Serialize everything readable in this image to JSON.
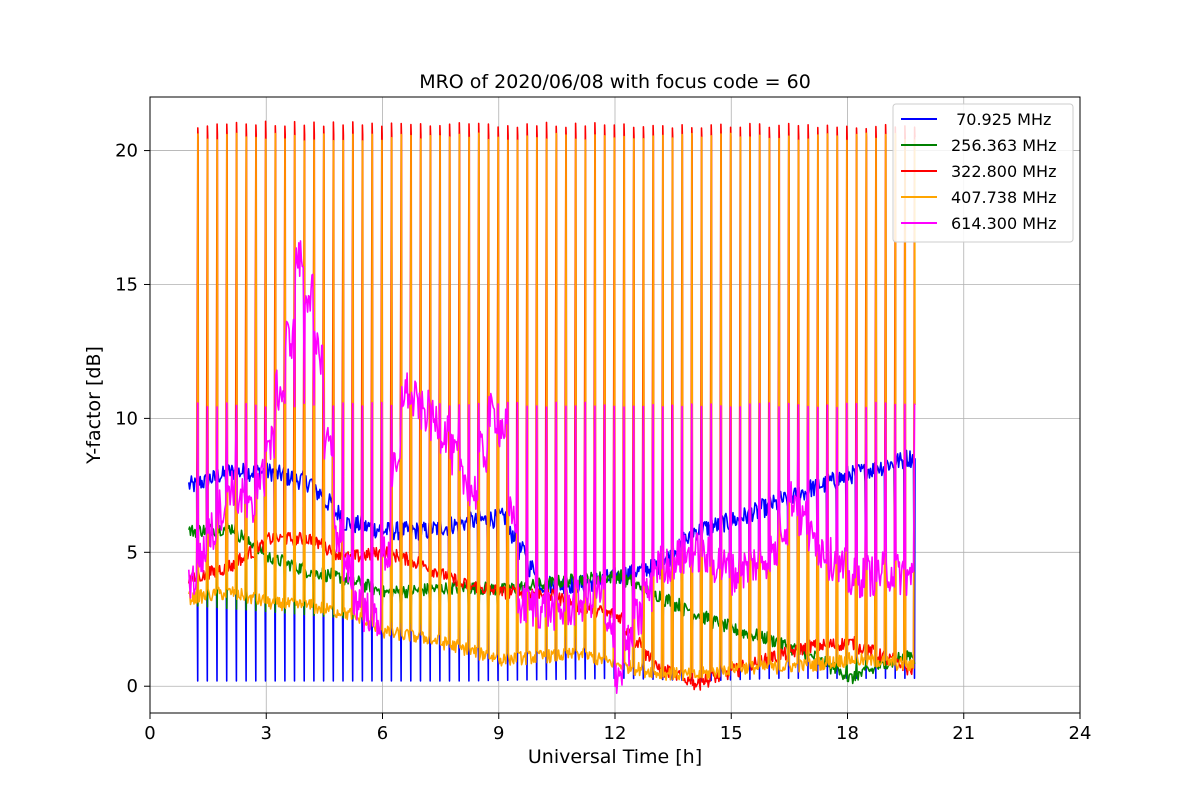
{
  "chart_data": {
    "type": "line",
    "title": "MRO of 2020/06/08 with focus code = 60",
    "xlabel": "Universal Time [h]",
    "ylabel": "Y-factor [dB]",
    "xlim": [
      0,
      24
    ],
    "ylim": [
      -1,
      22
    ],
    "xticks": [
      0,
      3,
      6,
      9,
      12,
      15,
      18,
      21,
      24
    ],
    "yticks": [
      0,
      5,
      10,
      15,
      20
    ],
    "grid": true,
    "legend_position": "top-right",
    "cycle_period_h": 0.25,
    "x_range_data": [
      1.0,
      19.7
    ],
    "series": [
      {
        "name": " 70.925 MHz",
        "color": "#0000ff",
        "peak_x": [
          1,
          2,
          3,
          4,
          5,
          6,
          7,
          8,
          9,
          10,
          11,
          12,
          13,
          14,
          15,
          16,
          17,
          18,
          19,
          19.7
        ],
        "peak_y": [
          7.5,
          8.0,
          8.0,
          7.6,
          6.1,
          5.8,
          5.8,
          6.1,
          6.3,
          3.8,
          3.8,
          4.1,
          4.5,
          5.8,
          6.2,
          6.8,
          7.4,
          7.9,
          8.3,
          8.6
        ],
        "low_x": [
          1,
          4,
          8,
          12,
          14,
          16,
          19.7
        ],
        "low_y": [
          0.2,
          0.2,
          0.2,
          0.3,
          0.2,
          0.3,
          0.3
        ]
      },
      {
        "name": "256.363 MHz",
        "color": "#008000",
        "peak_x": [
          1,
          2,
          3,
          4,
          5,
          6,
          7,
          8,
          9,
          10,
          11,
          12,
          13,
          14,
          15,
          16,
          17,
          18,
          19,
          19.7
        ],
        "peak_y": [
          5.8,
          5.9,
          4.8,
          4.3,
          4.0,
          3.5,
          3.6,
          3.7,
          3.6,
          3.8,
          4.0,
          4.1,
          3.4,
          2.7,
          2.1,
          1.7,
          1.1,
          0.3,
          0.9,
          1.3
        ],
        "low_x": [
          1,
          19.7
        ],
        "low_y": [
          3.0,
          0.8
        ]
      },
      {
        "name": "322.800 MHz",
        "color": "#ff0000",
        "peak_x": [
          1,
          1.5,
          19.7
        ],
        "peak_y": [
          20.9,
          21.0,
          20.9
        ],
        "low_x": [
          1,
          2,
          3,
          4,
          5,
          6,
          7,
          8,
          9,
          10,
          11,
          12,
          13,
          14,
          15,
          16,
          17,
          18,
          19,
          19.7
        ],
        "low_y": [
          4.0,
          4.5,
          5.5,
          5.5,
          4.8,
          5.0,
          4.5,
          3.8,
          3.5,
          3.5,
          3.0,
          2.6,
          0.7,
          0.1,
          0.6,
          1.1,
          1.5,
          1.6,
          1.0,
          0.5
        ]
      },
      {
        "name": "407.738 MHz",
        "color": "#ffa500",
        "peak_x": [
          1,
          19.7
        ],
        "peak_y": [
          20.5,
          20.5
        ],
        "mid_y": 10.5,
        "low_x": [
          1,
          2,
          3,
          4,
          5,
          6,
          7,
          8,
          9,
          10,
          11,
          12,
          13,
          14,
          15,
          16,
          17,
          18,
          19,
          19.7
        ],
        "low_y": [
          3.3,
          3.5,
          3.1,
          3.0,
          2.7,
          2.0,
          1.8,
          1.4,
          1.0,
          1.1,
          1.2,
          0.8,
          0.5,
          0.4,
          0.7,
          0.7,
          0.8,
          1.0,
          0.9,
          0.7
        ]
      },
      {
        "name": "614.300 MHz",
        "color": "#ff00ff",
        "peak_x": [
          1,
          19.7
        ],
        "peak_y": [
          10.5,
          10.5
        ],
        "low_x": [
          1,
          2,
          2.5,
          3,
          3.5,
          3.8,
          4.3,
          4.8,
          5.3,
          5.8,
          6.5,
          7.5,
          8.2,
          8.9,
          9.5,
          10.5,
          11.5,
          12,
          13,
          14,
          15,
          16,
          16.5,
          17,
          18,
          19,
          19.7
        ],
        "low_y": [
          4.0,
          7.5,
          6.5,
          9.0,
          13.0,
          16.5,
          12.0,
          5.0,
          3.0,
          2.5,
          11.0,
          9.5,
          7.0,
          11.0,
          3.0,
          2.8,
          3.5,
          0.5,
          4.5,
          5.0,
          4.2,
          5.0,
          7.0,
          5.5,
          4.0,
          4.3,
          4.0
        ]
      }
    ]
  }
}
